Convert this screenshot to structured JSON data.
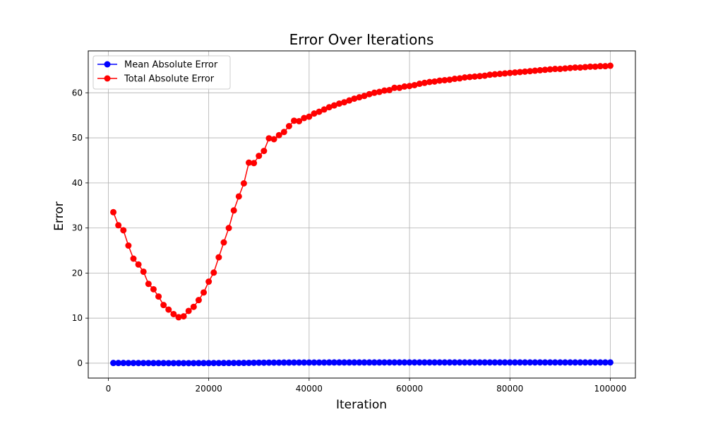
{
  "chart_data": {
    "type": "line",
    "title": "Error Over Iterations",
    "xlabel": "Iteration",
    "ylabel": "Error",
    "xlim": [
      -4000,
      105000
    ],
    "ylim": [
      -3.3,
      69.3
    ],
    "xticks": [
      0,
      20000,
      40000,
      60000,
      80000,
      100000
    ],
    "xtick_labels": [
      "0",
      "20000",
      "40000",
      "60000",
      "80000",
      "100000"
    ],
    "yticks": [
      0,
      10,
      20,
      30,
      40,
      50,
      60
    ],
    "ytick_labels": [
      "0",
      "10",
      "20",
      "30",
      "40",
      "50",
      "60"
    ],
    "grid": true,
    "legend_position": "upper-left",
    "series": [
      {
        "name": "Mean Absolute Error",
        "color": "#0000ff",
        "marker": "circle",
        "x": [
          1000,
          2000,
          3000,
          4000,
          5000,
          6000,
          7000,
          8000,
          9000,
          10000,
          11000,
          12000,
          13000,
          14000,
          15000,
          16000,
          17000,
          18000,
          19000,
          20000,
          21000,
          22000,
          23000,
          24000,
          25000,
          26000,
          27000,
          28000,
          29000,
          30000,
          31000,
          32000,
          33000,
          34000,
          35000,
          36000,
          37000,
          38000,
          39000,
          40000,
          41000,
          42000,
          43000,
          44000,
          45000,
          46000,
          47000,
          48000,
          49000,
          50000,
          51000,
          52000,
          53000,
          54000,
          55000,
          56000,
          57000,
          58000,
          59000,
          60000,
          61000,
          62000,
          63000,
          64000,
          65000,
          66000,
          67000,
          68000,
          69000,
          70000,
          71000,
          72000,
          73000,
          74000,
          75000,
          76000,
          77000,
          78000,
          79000,
          80000,
          81000,
          82000,
          83000,
          84000,
          85000,
          86000,
          87000,
          88000,
          89000,
          90000,
          91000,
          92000,
          93000,
          94000,
          95000,
          96000,
          97000,
          98000,
          99000,
          100000
        ],
        "y": [
          0.05,
          0.05,
          0.05,
          0.04,
          0.04,
          0.04,
          0.04,
          0.04,
          0.03,
          0.03,
          0.03,
          0.02,
          0.02,
          0.02,
          0.02,
          0.02,
          0.02,
          0.03,
          0.03,
          0.03,
          0.04,
          0.04,
          0.05,
          0.05,
          0.06,
          0.06,
          0.07,
          0.08,
          0.1,
          0.12,
          0.12,
          0.13,
          0.13,
          0.13,
          0.14,
          0.14,
          0.15,
          0.15,
          0.15,
          0.15,
          0.15,
          0.15,
          0.15,
          0.16,
          0.16,
          0.16,
          0.16,
          0.16,
          0.16,
          0.16,
          0.16,
          0.16,
          0.16,
          0.16,
          0.17,
          0.17,
          0.17,
          0.17,
          0.17,
          0.17,
          0.17,
          0.17,
          0.17,
          0.17,
          0.17,
          0.17,
          0.17,
          0.17,
          0.17,
          0.17,
          0.17,
          0.17,
          0.17,
          0.17,
          0.17,
          0.17,
          0.17,
          0.17,
          0.17,
          0.17,
          0.17,
          0.17,
          0.17,
          0.17,
          0.17,
          0.17,
          0.17,
          0.17,
          0.17,
          0.17,
          0.17,
          0.17,
          0.17,
          0.17,
          0.17,
          0.17,
          0.17,
          0.17,
          0.17,
          0.17
        ]
      },
      {
        "name": "Total Absolute Error",
        "color": "#ff0000",
        "marker": "circle",
        "x": [
          1000,
          2000,
          3000,
          4000,
          5000,
          6000,
          7000,
          8000,
          9000,
          10000,
          11000,
          12000,
          13000,
          14000,
          15000,
          16000,
          17000,
          18000,
          19000,
          20000,
          21000,
          22000,
          23000,
          24000,
          25000,
          26000,
          27000,
          28000,
          29000,
          30000,
          31000,
          32000,
          33000,
          34000,
          35000,
          36000,
          37000,
          38000,
          39000,
          40000,
          41000,
          42000,
          43000,
          44000,
          45000,
          46000,
          47000,
          48000,
          49000,
          50000,
          51000,
          52000,
          53000,
          54000,
          55000,
          56000,
          57000,
          58000,
          59000,
          60000,
          61000,
          62000,
          63000,
          64000,
          65000,
          66000,
          67000,
          68000,
          69000,
          70000,
          71000,
          72000,
          73000,
          74000,
          75000,
          76000,
          77000,
          78000,
          79000,
          80000,
          81000,
          82000,
          83000,
          84000,
          85000,
          86000,
          87000,
          88000,
          89000,
          90000,
          91000,
          92000,
          93000,
          94000,
          95000,
          96000,
          97000,
          98000,
          99000,
          100000
        ],
        "y": [
          33.5,
          30.6,
          29.5,
          26.1,
          23.2,
          21.9,
          20.3,
          17.6,
          16.4,
          14.8,
          12.9,
          11.9,
          10.9,
          10.2,
          10.4,
          11.6,
          12.5,
          14.0,
          15.7,
          18.1,
          20.1,
          23.5,
          26.8,
          30.0,
          33.9,
          37.0,
          39.9,
          44.5,
          44.4,
          46.0,
          47.1,
          49.9,
          49.7,
          50.6,
          51.3,
          52.6,
          53.8,
          53.7,
          54.4,
          54.7,
          55.4,
          55.8,
          56.3,
          56.8,
          57.2,
          57.6,
          57.9,
          58.3,
          58.7,
          59.0,
          59.3,
          59.7,
          60.0,
          60.2,
          60.5,
          60.6,
          61.1,
          61.1,
          61.4,
          61.5,
          61.7,
          62.0,
          62.2,
          62.4,
          62.5,
          62.7,
          62.8,
          62.9,
          63.1,
          63.2,
          63.4,
          63.5,
          63.6,
          63.7,
          63.8,
          64.0,
          64.1,
          64.2,
          64.3,
          64.4,
          64.5,
          64.6,
          64.7,
          64.8,
          64.9,
          65.0,
          65.1,
          65.2,
          65.3,
          65.3,
          65.4,
          65.5,
          65.6,
          65.6,
          65.7,
          65.8,
          65.8,
          65.9,
          65.9,
          66.0
        ]
      }
    ]
  }
}
